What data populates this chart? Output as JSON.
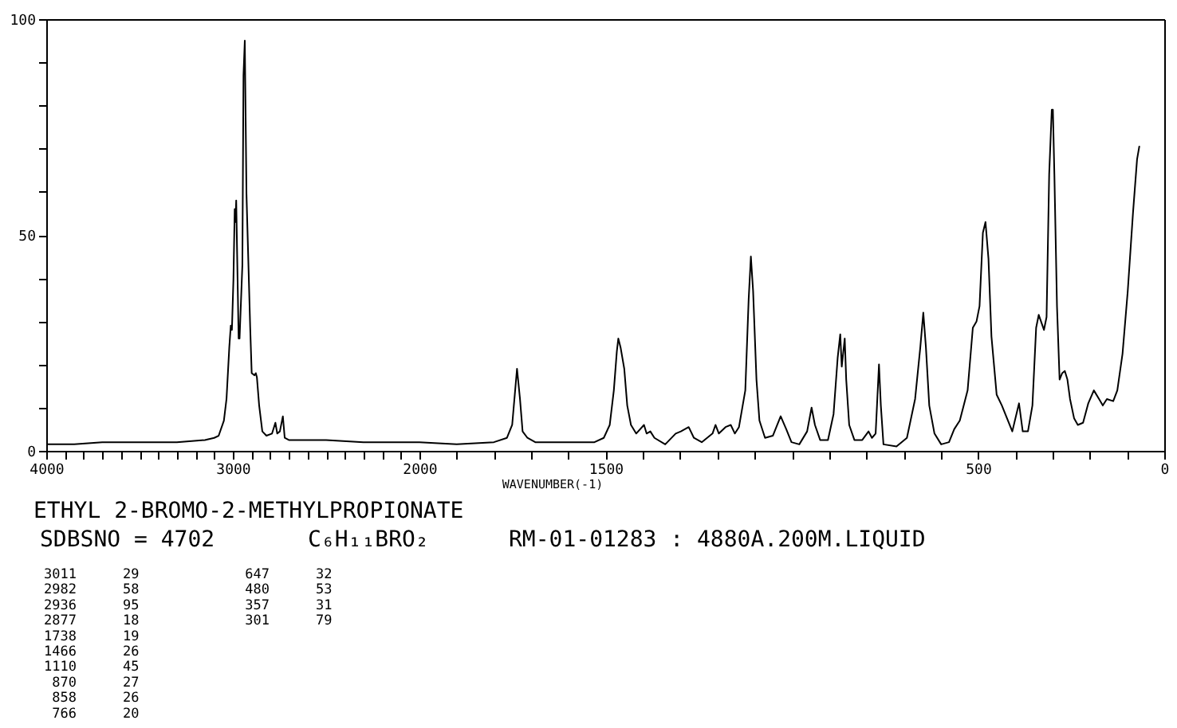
{
  "chart_data": [
    {
      "type": "line",
      "xlim": [
        4000,
        2000
      ],
      "xticks": [
        4000,
        {
          "value": 3900,
          "label": null
        },
        {
          "value": 3800,
          "label": null
        },
        {
          "value": 3700,
          "label": null
        },
        {
          "value": 3600,
          "label": null
        },
        {
          "value": 3500,
          "label": null
        },
        {
          "value": 3400,
          "label": null
        },
        {
          "value": 3300,
          "label": null
        },
        {
          "value": 3200,
          "label": null
        },
        {
          "value": 3100,
          "label": null
        },
        3000,
        {
          "value": 2900,
          "label": null
        },
        {
          "value": 2800,
          "label": null
        },
        {
          "value": 2700,
          "label": null
        },
        {
          "value": 2600,
          "label": null
        },
        {
          "value": 2500,
          "label": null
        },
        {
          "value": 2400,
          "label": null
        },
        {
          "value": 2300,
          "label": null
        },
        {
          "value": 2200,
          "label": null
        },
        {
          "value": 2100,
          "label": null
        }
      ],
      "ylim": [
        0,
        100
      ],
      "yticks": [
        0,
        {
          "value": 10,
          "label": null
        },
        {
          "value": 20,
          "label": null
        },
        {
          "value": 30,
          "label": null
        },
        {
          "value": 40,
          "label": null
        },
        50,
        {
          "value": 60,
          "label": null
        },
        {
          "value": 70,
          "label": null
        },
        {
          "value": 80,
          "label": null
        },
        {
          "value": 90,
          "label": null
        },
        100
      ],
      "x": [
        4000,
        3850,
        3700,
        3500,
        3300,
        3150,
        3100,
        3076,
        3048,
        3034,
        3019,
        3011,
        3005,
        2997,
        2990,
        2986,
        2982,
        2977,
        2969,
        2964,
        2949,
        2943,
        2936,
        2927,
        2918,
        2907,
        2899,
        2884,
        2877,
        2871,
        2859,
        2842,
        2820,
        2790,
        2772,
        2762,
        2748,
        2732,
        2722,
        2700,
        2500,
        2300,
        2100,
        2000
      ],
      "series": [
        {
          "color": "#000000",
          "values": [
            1.5,
            1.5,
            2,
            2,
            2,
            2.5,
            3,
            3.5,
            7,
            12,
            24,
            29,
            28,
            39.5,
            56,
            53,
            58,
            45.5,
            26,
            26,
            43,
            87,
            95,
            59.5,
            45.5,
            28.5,
            18,
            17.5,
            18,
            17,
            10.5,
            4.5,
            3.5,
            4,
            6.5,
            4,
            4.5,
            8,
            3,
            2.5,
            2.5,
            2,
            2,
            2
          ]
        }
      ]
    },
    {
      "type": "line",
      "xlabel": "WAVENUMBER(-1)",
      "xlim": [
        2000,
        0
      ],
      "xticks": [
        2000,
        {
          "value": 1900,
          "label": null
        },
        {
          "value": 1800,
          "label": null
        },
        {
          "value": 1700,
          "label": null
        },
        {
          "value": 1600,
          "label": null
        },
        1500,
        {
          "value": 1400,
          "label": null
        },
        {
          "value": 1300,
          "label": null
        },
        {
          "value": 1200,
          "label": null
        },
        {
          "value": 1100,
          "label": null
        },
        {
          "value": 1000,
          "label": null
        },
        {
          "value": 900,
          "label": null
        },
        {
          "value": 800,
          "label": null
        },
        {
          "value": 700,
          "label": null
        },
        {
          "value": 600,
          "label": null
        },
        500,
        {
          "value": 400,
          "label": null
        },
        {
          "value": 300,
          "label": null
        },
        {
          "value": 200,
          "label": null
        },
        {
          "value": 100,
          "label": null
        },
        0
      ],
      "ylim": [
        0,
        100
      ],
      "tick_labels": "x",
      "x": [
        2000,
        1900,
        1800,
        1765,
        1751,
        1744,
        1738,
        1730,
        1723,
        1710,
        1689,
        1600,
        1530,
        1505,
        1489,
        1478,
        1470,
        1466,
        1460,
        1450,
        1442,
        1432,
        1418,
        1397,
        1390,
        1380,
        1369,
        1340,
        1312,
        1298,
        1277,
        1263,
        1242,
        1213,
        1205,
        1196,
        1178,
        1164,
        1153,
        1142,
        1125,
        1116,
        1110,
        1104,
        1095,
        1087,
        1072,
        1051,
        1030,
        1015,
        1001,
        980,
        959,
        947,
        938,
        924,
        903,
        888,
        877,
        870,
        866,
        858,
        854,
        846,
        832,
        811,
        794,
        785,
        775,
        766,
        761,
        754,
        719,
        691,
        669,
        655,
        647,
        640,
        631,
        617,
        599,
        578,
        564,
        549,
        528,
        514,
        504,
        496,
        487,
        480,
        472,
        464,
        450,
        436,
        422,
        408,
        390,
        380,
        366,
        354,
        344,
        337,
        331,
        323,
        316,
        309,
        302,
        299,
        295,
        288,
        281,
        274,
        267,
        260,
        253,
        242,
        232,
        218,
        204,
        189,
        175,
        165,
        154,
        137,
        126,
        112,
        98,
        84,
        73,
        67
      ],
      "series": [
        {
          "color": "#000000",
          "values": [
            2,
            1.5,
            2,
            3,
            6,
            13,
            19,
            12,
            4.5,
            3,
            2,
            2,
            2,
            3,
            6,
            14,
            23,
            26,
            24,
            19,
            10.5,
            6,
            4,
            6,
            4,
            4.5,
            3,
            1.5,
            4,
            4.5,
            5.5,
            3,
            2,
            4,
            6,
            4,
            5.5,
            6,
            4,
            5.5,
            14,
            35,
            45,
            37,
            16.5,
            7,
            3,
            3.5,
            8,
            5,
            2,
            1.5,
            4.5,
            10,
            6,
            2.5,
            2.5,
            8.5,
            21.5,
            27,
            19.5,
            26,
            16.5,
            6,
            2.5,
            2.5,
            4.5,
            3,
            4,
            20,
            10.5,
            1.5,
            1,
            3,
            12,
            24,
            32,
            24,
            10.5,
            4,
            1.5,
            2,
            5,
            7,
            14,
            28.5,
            30,
            33.5,
            50.5,
            53,
            44.5,
            26.5,
            13,
            10.5,
            7.5,
            4.5,
            11,
            4.5,
            4.5,
            10.5,
            28.5,
            31.5,
            30,
            28,
            31,
            64,
            79,
            79,
            64,
            33.5,
            16.5,
            18,
            18.5,
            16.5,
            12,
            7.5,
            6,
            6.5,
            11,
            14,
            12,
            10.5,
            12,
            11.5,
            14,
            22.5,
            37,
            55,
            67.5,
            70.5
          ]
        }
      ]
    },
    {
      "type": "other",
      "title": "ETHYL 2-BROMO-2-METHYLPROPIONATE",
      "annotations": [
        "SDBSNO = 4702",
        "C₆H₁₁BRO₂",
        "RM-01-01283 : 4880A.200M.LIQUID",
        "3011",
        "29",
        "2982",
        "58",
        "2936",
        "95",
        "2877",
        "18",
        "1738",
        "19",
        "1466",
        "26",
        "1110",
        "45",
        "870",
        "27",
        "858",
        "26",
        "766",
        "20",
        "647",
        "32",
        "480",
        "53",
        "357",
        "31",
        "301",
        "79"
      ]
    }
  ]
}
